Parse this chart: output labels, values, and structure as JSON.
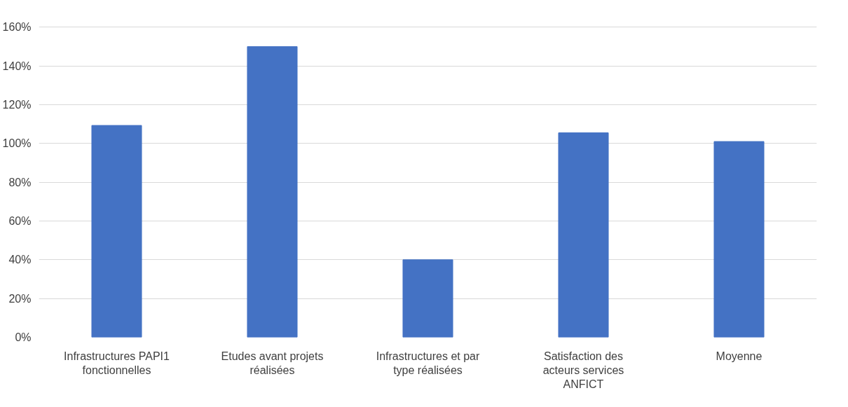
{
  "chart_data": {
    "type": "bar",
    "categories": [
      "Infrastructures PAPI1 fonctionnelles",
      "Etudes avant projets réalisées",
      "Infrastructures et par type réalisées",
      "Satisfaction des acteurs services ANFICT",
      "Moyenne"
    ],
    "values": [
      109.3,
      150,
      40,
      105.5,
      101
    ],
    "color": "#4472c4",
    "ylim": [
      0,
      160
    ],
    "yticks": [
      {
        "value": 0,
        "label": "0%"
      },
      {
        "value": 20,
        "label": "20%"
      },
      {
        "value": 40,
        "label": "40%"
      },
      {
        "value": 60,
        "label": "60%"
      },
      {
        "value": 80,
        "label": "80%"
      },
      {
        "value": 100,
        "label": "100%"
      },
      {
        "value": 120,
        "label": "120%"
      },
      {
        "value": 140,
        "label": "140%"
      },
      {
        "value": 160,
        "label": "160%"
      }
    ],
    "grid": "y"
  }
}
